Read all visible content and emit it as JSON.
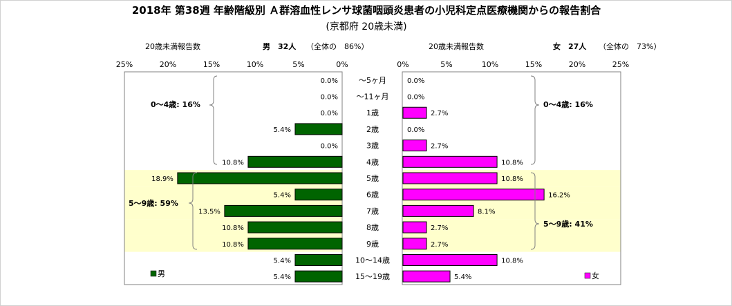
{
  "chart_data": {
    "type": "bar",
    "title": "2018年 第38週 年齢階級別 Ａ群溶血性レンサ球菌咽頭炎患者の小児科定点医療機関からの報告割合",
    "subtitle": "(京都府 20歳未満)",
    "categories": [
      "～5ヶ月",
      "～11ヶ月",
      "1歳",
      "2歳",
      "3歳",
      "4歳",
      "5歳",
      "6歳",
      "7歳",
      "8歳",
      "9歳",
      "10～14歳",
      "15～19歳"
    ],
    "series": [
      {
        "name": "男",
        "values": [
          0.0,
          0.0,
          0.0,
          5.4,
          0.0,
          10.8,
          18.9,
          5.4,
          13.5,
          10.8,
          10.8,
          5.4,
          5.4
        ],
        "labels": [
          "0.0%",
          "0.0%",
          "0.0%",
          "5.4%",
          "0.0%",
          "10.8%",
          "18.9%",
          "5.4%",
          "13.5%",
          "10.8%",
          "10.8%",
          "5.4%",
          "5.4%"
        ],
        "color": "#006400"
      },
      {
        "name": "女",
        "values": [
          0.0,
          0.0,
          2.7,
          0.0,
          2.7,
          10.8,
          10.8,
          16.2,
          8.1,
          2.7,
          2.7,
          10.8,
          5.4
        ],
        "labels": [
          "0.0%",
          "0.0%",
          "2.7%",
          "0.0%",
          "2.7%",
          "10.8%",
          "10.8%",
          "16.2%",
          "8.1%",
          "2.7%",
          "2.7%",
          "10.8%",
          "5.4%"
        ],
        "color": "#FF00FF"
      }
    ],
    "xlim": [
      0,
      25
    ],
    "ticks": [
      "25%",
      "20%",
      "15%",
      "10%",
      "5%",
      "0%"
    ],
    "ticks_right": [
      "0%",
      "5%",
      "10%",
      "15%",
      "20%",
      "25%"
    ],
    "highlight_categories": [
      "5歳",
      "6歳",
      "7歳",
      "8歳",
      "9歳"
    ],
    "highlight_color": "#FFFFCC"
  },
  "header": {
    "left_count_label": "20歳未満報告数",
    "left_sex_count": "男　32人",
    "left_share": "（全体の　86%）",
    "right_count_label": "20歳未満報告数",
    "right_sex_count": "女　27人",
    "right_share": "（全体の　73%）"
  },
  "groups": {
    "left_0_4": "0～4歳: 16%",
    "left_5_9": "5～9歳: 59%",
    "right_0_4": "0～4歳: 16%",
    "right_5_9": "5～9歳: 41%"
  },
  "legend": {
    "male": "男",
    "female": "女"
  }
}
